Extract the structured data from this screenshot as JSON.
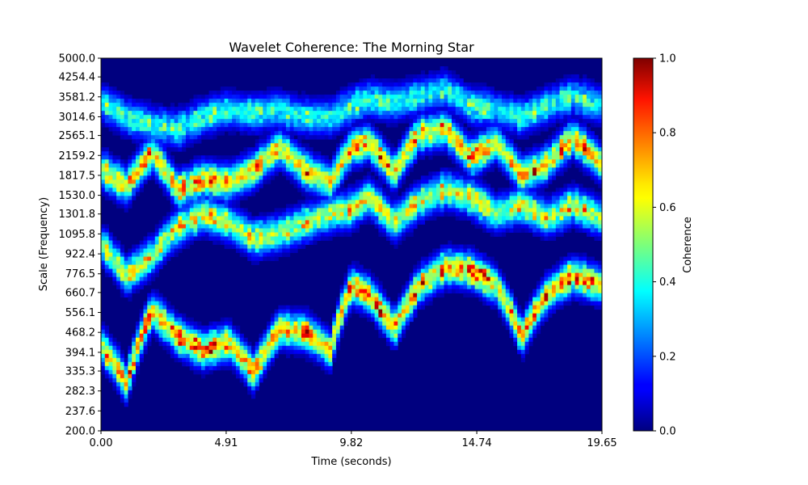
{
  "chart_data": {
    "type": "heatmap",
    "title": "Wavelet Coherence: The Morning Star",
    "xlabel": "Time (seconds)",
    "ylabel": "Scale (Frequency)",
    "xlim": [
      0,
      19.65
    ],
    "ylim": [
      200,
      5000
    ],
    "y_scale": "log",
    "x_ticks": [
      "0.00",
      "4.91",
      "9.82",
      "14.74",
      "19.65"
    ],
    "y_ticks": [
      "200.0",
      "237.6",
      "282.3",
      "335.3",
      "394.1",
      "468.2",
      "556.1",
      "660.7",
      "776.5",
      "922.4",
      "1095.8",
      "1301.8",
      "1530.0",
      "1817.5",
      "2159.2",
      "2565.1",
      "3014.6",
      "3581.2",
      "4254.4",
      "5000.0"
    ],
    "colormap": "jet",
    "colorbar": {
      "label": "Coherence",
      "range": [
        0,
        1
      ],
      "ticks": [
        "0.0",
        "0.2",
        "0.4",
        "0.6",
        "0.8",
        "1.0"
      ]
    },
    "grid": false,
    "bands": [
      {
        "t": [
          0.0,
          1.0,
          2.0,
          3.0,
          4.0,
          5.0,
          6.0,
          7.0,
          8.0,
          9.0,
          9.82,
          10.5,
          11.5,
          12.5,
          13.5,
          14.5,
          15.5,
          16.5,
          17.5,
          18.5,
          19.65
        ],
        "scale": [
          1900,
          1650,
          2200,
          1600,
          1750,
          1700,
          1900,
          2300,
          1900,
          1700,
          2300,
          2400,
          1850,
          2600,
          2700,
          2100,
          2400,
          1800,
          2000,
          2500,
          2000
        ],
        "peak": 0.8
      },
      {
        "t": [
          0.0,
          1.0,
          2.0,
          3.0,
          4.0,
          5.0,
          6.0,
          7.0,
          8.0,
          9.0,
          9.82,
          10.5,
          11.5,
          12.5,
          13.5,
          14.5,
          15.5,
          16.5,
          17.5,
          18.5,
          19.65
        ],
        "scale": [
          1000,
          760,
          900,
          1150,
          1300,
          1200,
          1050,
          1100,
          1200,
          1300,
          1350,
          1500,
          1200,
          1450,
          1600,
          1500,
          1300,
          1400,
          1250,
          1400,
          1250
        ],
        "peak": 0.7
      },
      {
        "t": [
          0.0,
          1.0,
          2.0,
          3.0,
          4.0,
          5.0,
          6.0,
          7.0,
          8.0,
          9.0,
          9.82,
          10.5,
          11.5,
          12.5,
          13.5,
          14.5,
          15.5,
          16.5,
          17.5,
          18.5,
          19.65
        ],
        "scale": [
          420,
          300,
          560,
          450,
          400,
          430,
          330,
          480,
          470,
          400,
          700,
          650,
          480,
          700,
          820,
          800,
          700,
          450,
          650,
          760,
          700
        ],
        "peak": 0.85
      },
      {
        "t": [
          0.0,
          1.0,
          2.0,
          3.0,
          4.0,
          5.0,
          6.0,
          7.0,
          8.0,
          9.0,
          9.82,
          10.5,
          11.5,
          12.5,
          13.5,
          14.5,
          15.5,
          16.5,
          17.5,
          18.5,
          19.65
        ],
        "scale": [
          3400,
          3000,
          2800,
          2700,
          3000,
          3200,
          3100,
          3200,
          3000,
          3000,
          3300,
          3500,
          3400,
          3600,
          3800,
          3300,
          3200,
          3000,
          3300,
          3600,
          3300
        ],
        "peak": 0.5
      }
    ]
  }
}
